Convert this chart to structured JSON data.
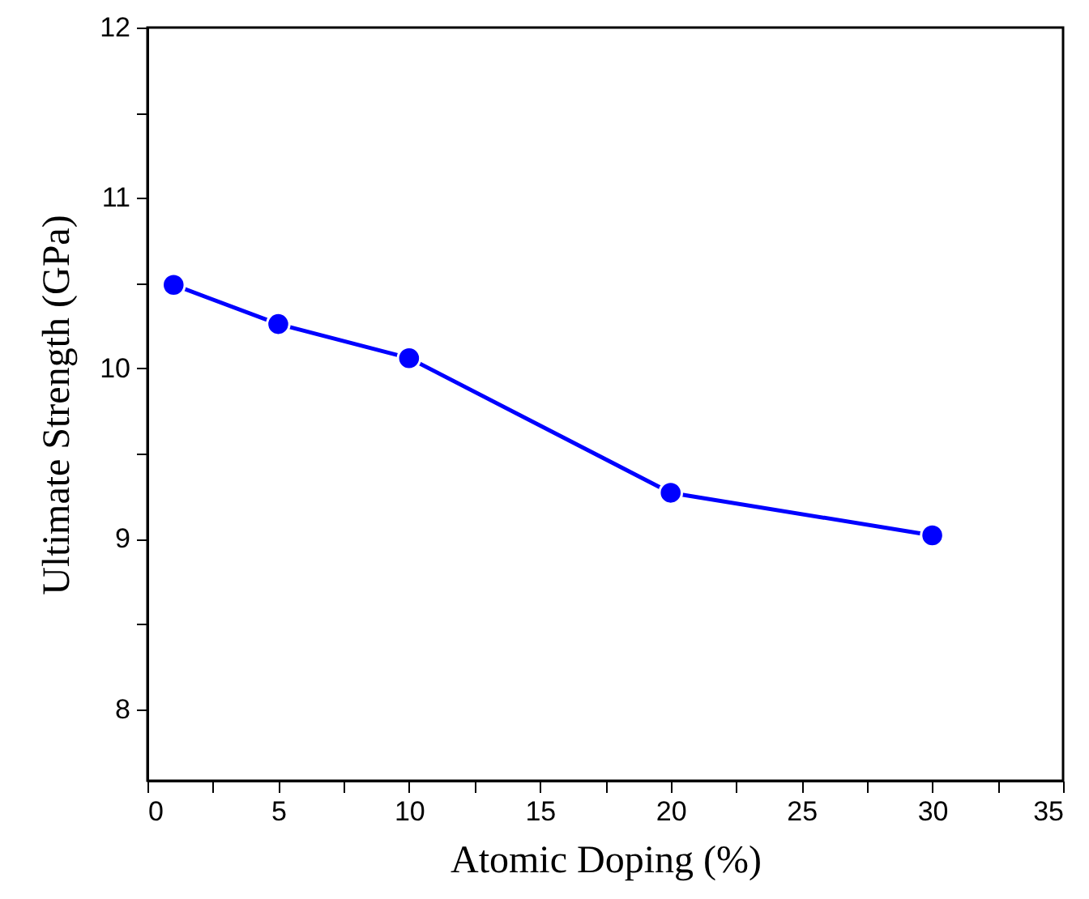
{
  "chart_data": {
    "type": "line",
    "xlabel": "Atomic Doping (%)",
    "ylabel": "Ultimate Strength  (GPa)",
    "x": [
      1,
      5,
      10,
      20,
      30
    ],
    "series": [
      {
        "color": "#0000ff",
        "values": [
          10.49,
          10.26,
          10.06,
          9.27,
          9.02
        ]
      }
    ],
    "xlim": [
      0,
      35
    ],
    "xticks": [
      0,
      {
        "value": 2.5,
        "label": null
      },
      5,
      {
        "value": 7.5,
        "label": null
      },
      10,
      {
        "value": 12.5,
        "label": null
      },
      15,
      {
        "value": 17.5,
        "label": null
      },
      20,
      {
        "value": 22.5,
        "label": null
      },
      25,
      {
        "value": 27.5,
        "label": null
      },
      30,
      {
        "value": 32.5,
        "label": null
      },
      35
    ],
    "ylim": [
      7.58,
      12
    ],
    "yticks": [
      8,
      {
        "value": 8.5,
        "label": null
      },
      9,
      {
        "value": 9.5,
        "label": null
      },
      10,
      {
        "value": 10.5,
        "label": null
      },
      11,
      {
        "value": 11.5,
        "label": null
      },
      12
    ],
    "marker": "circle",
    "line_style": "solid",
    "grid": false
  }
}
